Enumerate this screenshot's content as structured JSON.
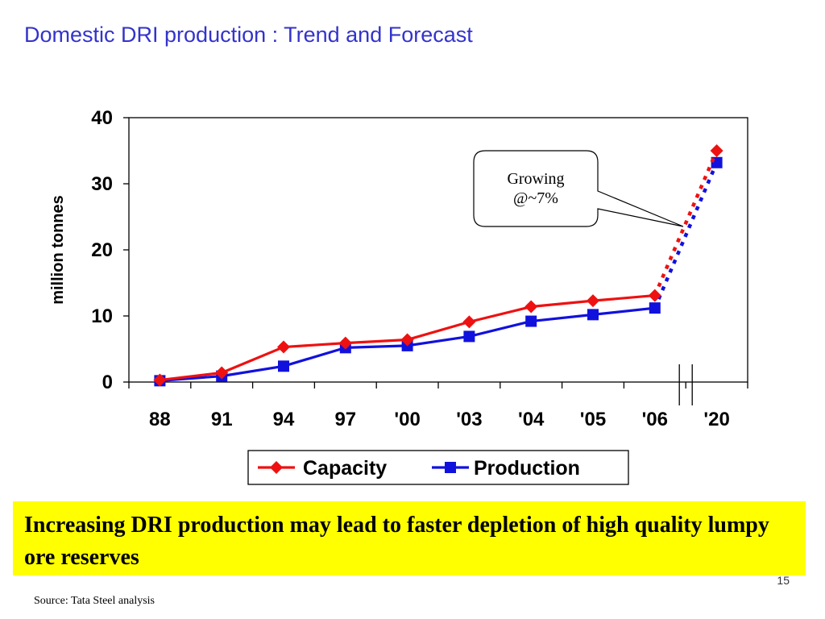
{
  "slide": {
    "title": "Domestic DRI production : Trend and Forecast",
    "banner_text": "Increasing DRI production may lead to faster depletion of high quality lumpy ore reserves",
    "page_number": "15",
    "source": "Source: Tata Steel analysis"
  },
  "chart_data": {
    "type": "line",
    "title": "",
    "xlabel": "",
    "ylabel": "million tonnes",
    "ylim": [
      0,
      40
    ],
    "yticks": [
      0,
      10,
      20,
      30,
      40
    ],
    "categories": [
      "88",
      "91",
      "94",
      "97",
      "'00",
      "'03",
      "'04",
      "'05",
      "'06",
      "'20"
    ],
    "axis_break": "between '06 and '20",
    "series": [
      {
        "name": "Capacity",
        "color": "#ee1111",
        "marker": "diamond",
        "values": [
          0.3,
          1.4,
          5.3,
          5.9,
          6.4,
          9.1,
          11.4,
          12.3,
          13.1,
          35.0
        ]
      },
      {
        "name": "Production",
        "color": "#1111dd",
        "marker": "square",
        "values": [
          0.2,
          0.9,
          2.4,
          5.2,
          5.5,
          6.9,
          9.2,
          10.2,
          11.2,
          33.2
        ]
      }
    ],
    "forecast_segment": "dotted from '06 to '20",
    "annotation": "Growing\n@~7%",
    "grid": false,
    "legend_position": "bottom"
  }
}
